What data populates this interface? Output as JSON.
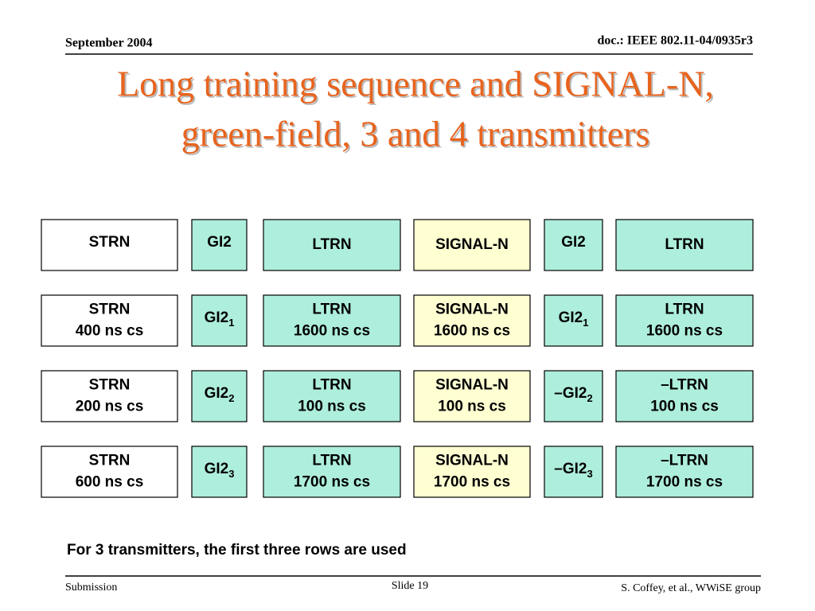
{
  "header": {
    "date": "September 2004",
    "doc": "doc.: IEEE 802.11-04/0935r3"
  },
  "title": [
    "Long training sequence and SIGNAL-N,",
    "green-field, 3 and 4 transmitters"
  ],
  "table": {
    "rows": [
      [
        {
          "lines": [
            "STRN"
          ]
        },
        {
          "text": "GI2"
        },
        {
          "lines": [
            "LTRN"
          ]
        },
        {
          "lines": [
            "SIGNAL-N"
          ]
        },
        {
          "text": "GI2"
        },
        {
          "lines": [
            "LTRN"
          ]
        }
      ],
      [
        {
          "lines": [
            "STRN",
            "400 ns cs"
          ]
        },
        {
          "text": "GI2",
          "sub": "1"
        },
        {
          "lines": [
            "LTRN",
            "1600 ns cs"
          ]
        },
        {
          "lines": [
            "SIGNAL-N",
            "1600 ns cs"
          ]
        },
        {
          "text": "GI2",
          "sub": "1"
        },
        {
          "lines": [
            "LTRN",
            "1600 ns cs"
          ]
        }
      ],
      [
        {
          "lines": [
            "STRN",
            "200 ns cs"
          ]
        },
        {
          "text": "GI2",
          "sub": "2"
        },
        {
          "lines": [
            "LTRN",
            "100 ns cs"
          ]
        },
        {
          "lines": [
            "SIGNAL-N",
            "100 ns cs"
          ]
        },
        {
          "text": "–GI2",
          "sub": "2"
        },
        {
          "lines": [
            "–LTRN",
            "100 ns cs"
          ]
        }
      ],
      [
        {
          "lines": [
            "STRN",
            "600 ns cs"
          ]
        },
        {
          "text": "GI2",
          "sub": "3"
        },
        {
          "lines": [
            "LTRN",
            "1700 ns cs"
          ]
        },
        {
          "lines": [
            "SIGNAL-N",
            "1700 ns cs"
          ]
        },
        {
          "text": "–GI2",
          "sub": "3"
        },
        {
          "lines": [
            "–LTRN",
            "1700 ns cs"
          ]
        }
      ]
    ]
  },
  "note": "For 3 transmitters, the first three rows are used",
  "footer": {
    "left": "Submission",
    "center": "Slide 19",
    "right": "S. Coffey, et al., WWiSE group"
  }
}
